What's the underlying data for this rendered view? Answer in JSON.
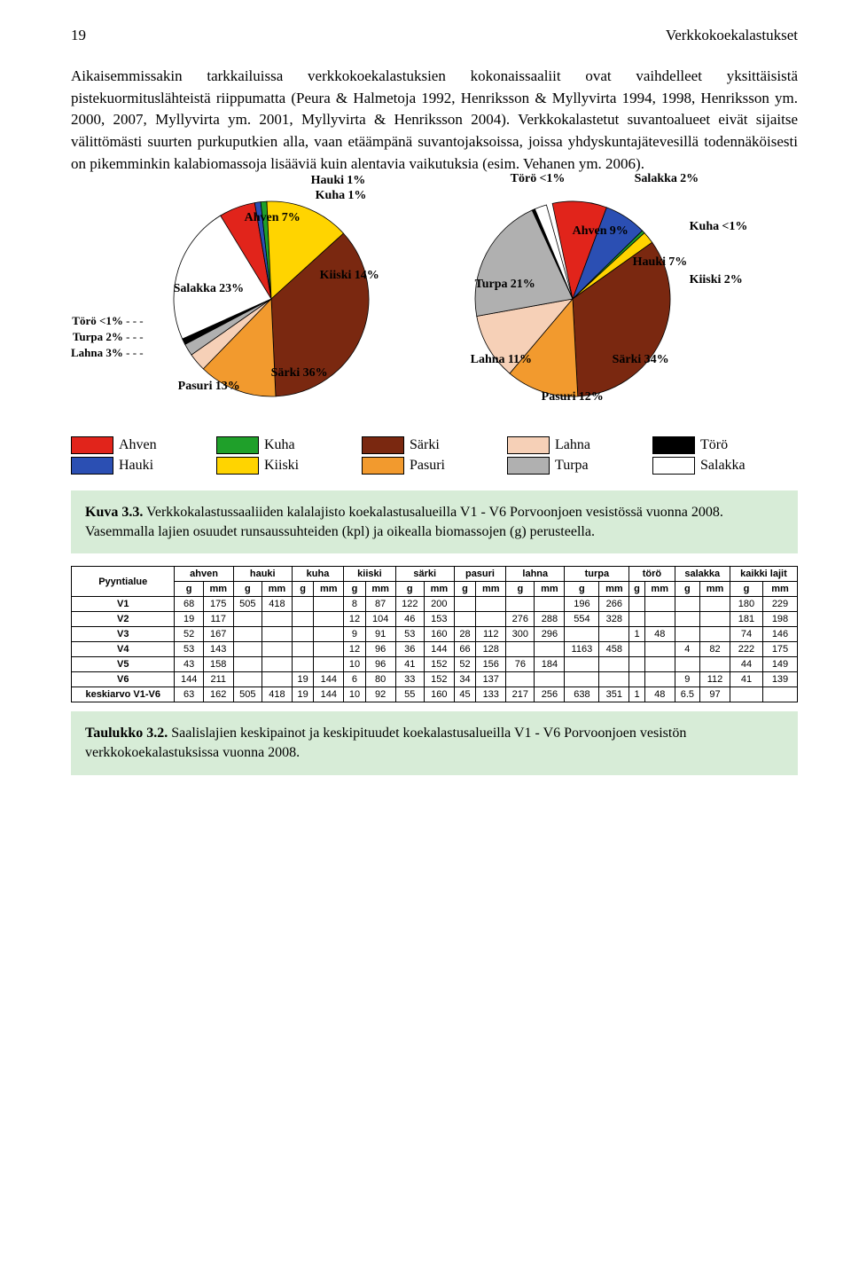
{
  "header": {
    "page_number": "19",
    "section_title": "Verkkokoekalastukset"
  },
  "paragraph": "Aikaisemmissakin tarkkailuissa verkkokoekalastuksien kokonaissaaliit ovat vaihdelleet yksittäisistä pistekuormituslähteistä riippumatta (Peura & Halmetoja 1992, Henriksson & Myllyvirta 1994, 1998, Henriksson ym. 2000, 2007, Myllyvirta ym. 2001, Myllyvirta & Henriksson 2004). Verkkokalastetut suvantoalueet eivät sijaitse välittömästi suurten purkuputkien alla, vaan etäämpänä suvantojaksoissa, joissa yhdyskuntajätevesillä todennäköisesti on pikemminkin kalabiomassoja lisääviä kuin alentavia vaikutuksia (esim. Vehanen ym. 2006).",
  "pieA": {
    "slices": [
      {
        "name": "Ahven",
        "pct": 7,
        "color": "#e1241b"
      },
      {
        "name": "Hauki",
        "pct": 1,
        "color": "#2b4fb3"
      },
      {
        "name": "Kuha",
        "pct": 1,
        "color": "#1fa02a"
      },
      {
        "name": "Kiiski",
        "pct": 14,
        "color": "#ffd400"
      },
      {
        "name": "Särki",
        "pct": 36,
        "color": "#7a2810"
      },
      {
        "name": "Pasuri",
        "pct": 13,
        "color": "#f29a2e"
      },
      {
        "name": "Lahna",
        "pct": 3,
        "color": "#f6d0b7"
      },
      {
        "name": "Turpa",
        "pct": 2,
        "color": "#b0b0b0"
      },
      {
        "name": "Törö",
        "pct": 1,
        "color": "#000000"
      },
      {
        "name": "Salakka",
        "pct": 23,
        "color": "#ffffff"
      }
    ],
    "side_labels": [
      {
        "text": "Törö",
        "pct": "<1%"
      },
      {
        "text": "Turpa",
        "pct": "2%"
      },
      {
        "text": "Lahna",
        "pct": "3%"
      }
    ]
  },
  "pieB": {
    "slices": [
      {
        "name": "Ahven",
        "pct": 9,
        "color": "#e1241b"
      },
      {
        "name": "Hauki",
        "pct": 7,
        "color": "#2b4fb3"
      },
      {
        "name": "Kuha",
        "pct": 0.5,
        "color": "#1fa02a"
      },
      {
        "name": "Kiiski",
        "pct": 2,
        "color": "#ffd400"
      },
      {
        "name": "Särki",
        "pct": 34,
        "color": "#7a2810"
      },
      {
        "name": "Pasuri",
        "pct": 12,
        "color": "#f29a2e"
      },
      {
        "name": "Lahna",
        "pct": 11,
        "color": "#f6d0b7"
      },
      {
        "name": "Turpa",
        "pct": 21,
        "color": "#b0b0b0"
      },
      {
        "name": "Törö",
        "pct": 0.5,
        "color": "#000000"
      },
      {
        "name": "Salakka",
        "pct": 2,
        "color": "#ffffff"
      }
    ]
  },
  "legend": {
    "row1": [
      {
        "name": "Ahven",
        "color": "#e1241b"
      },
      {
        "name": "Kuha",
        "color": "#1fa02a"
      },
      {
        "name": "Särki",
        "color": "#7a2810"
      },
      {
        "name": "Lahna",
        "color": "#f6d0b7"
      },
      {
        "name": "Törö",
        "color": "#000000"
      }
    ],
    "row2": [
      {
        "name": "Hauki",
        "color": "#2b4fb3"
      },
      {
        "name": "Kiiski",
        "color": "#ffd400"
      },
      {
        "name": "Pasuri",
        "color": "#f29a2e"
      },
      {
        "name": "Turpa",
        "color": "#b0b0b0"
      },
      {
        "name": "Salakka",
        "color": "#ffffff"
      }
    ]
  },
  "figure_caption": {
    "title": "Kuva 3.3.",
    "text": " Verkkokalastussaaliiden kalalajisto koekalastusalueilla V1 - V6 Porvoonjoen vesistössä vuonna 2008. Vasemmalla lajien osuudet runsaussuhteiden (kpl) ja oikealla biomassojen (g) perusteella."
  },
  "table": {
    "row_header": "Pyyntialue",
    "species": [
      "ahven",
      "hauki",
      "kuha",
      "kiiski",
      "särki",
      "pasuri",
      "lahna",
      "turpa",
      "törö",
      "salakka",
      "kaikki lajit"
    ],
    "subcols": [
      "g",
      "mm"
    ],
    "rows": [
      {
        "label": "V1",
        "cells": [
          "68",
          "175",
          "505",
          "418",
          "",
          "",
          "8",
          "87",
          "122",
          "200",
          "",
          "",
          "",
          "",
          "196",
          "266",
          "",
          "",
          "",
          "",
          "180",
          "229"
        ]
      },
      {
        "label": "V2",
        "cells": [
          "19",
          "117",
          "",
          "",
          "",
          "",
          "12",
          "104",
          "46",
          "153",
          "",
          "",
          "276",
          "288",
          "554",
          "328",
          "",
          "",
          "",
          "",
          "181",
          "198"
        ]
      },
      {
        "label": "V3",
        "cells": [
          "52",
          "167",
          "",
          "",
          "",
          "",
          "9",
          "91",
          "53",
          "160",
          "28",
          "112",
          "300",
          "296",
          "",
          "",
          "1",
          "48",
          "",
          "",
          "74",
          "146"
        ]
      },
      {
        "label": "V4",
        "cells": [
          "53",
          "143",
          "",
          "",
          "",
          "",
          "12",
          "96",
          "36",
          "144",
          "66",
          "128",
          "",
          "",
          "1163",
          "458",
          "",
          "",
          "4",
          "82",
          "222",
          "175"
        ]
      },
      {
        "label": "V5",
        "cells": [
          "43",
          "158",
          "",
          "",
          "",
          "",
          "10",
          "96",
          "41",
          "152",
          "52",
          "156",
          "76",
          "184",
          "",
          "",
          "",
          "",
          "",
          "",
          "44",
          "149"
        ]
      },
      {
        "label": "V6",
        "cells": [
          "144",
          "211",
          "",
          "",
          "19",
          "144",
          "6",
          "80",
          "33",
          "152",
          "34",
          "137",
          "",
          "",
          "",
          "",
          "",
          "",
          "9",
          "112",
          "41",
          "139"
        ]
      },
      {
        "label": "keskiarvo V1-V6",
        "cells": [
          "63",
          "162",
          "505",
          "418",
          "19",
          "144",
          "10",
          "92",
          "55",
          "160",
          "45",
          "133",
          "217",
          "256",
          "638",
          "351",
          "1",
          "48",
          "6.5",
          "97",
          "",
          ""
        ]
      }
    ]
  },
  "table_caption": {
    "title": "Taulukko 3.2.",
    "text": " Saalislajien keskipainot ja keskipituudet koekalastusalueilla V1 - V6 Porvoonjoen vesistön verkkokoekalastuksissa vuonna 2008."
  }
}
